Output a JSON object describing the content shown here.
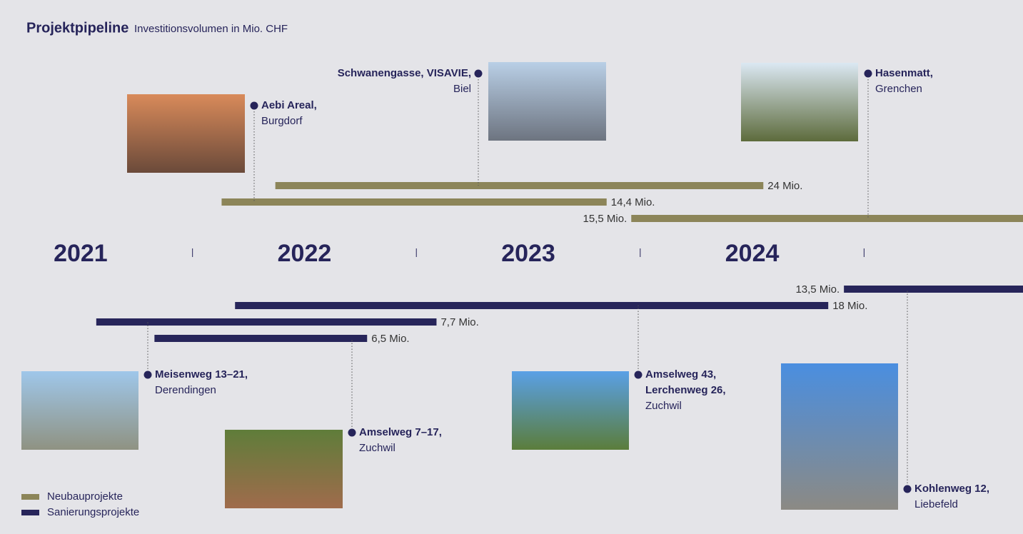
{
  "chart_data": {
    "type": "gantt",
    "title": "Projektpipeline",
    "subtitle": "Investitionsvolumen in Mio. CHF",
    "categories": [
      "2021",
      "2022",
      "2023",
      "2024"
    ],
    "xlim": [
      2021.14,
      2025.71
    ],
    "xticks": [
      2022,
      2023,
      2024,
      2025
    ],
    "series": [
      {
        "name": "Neubauprojekte",
        "color": "#8c8559",
        "tasks": [
          {
            "name": [
              "Aebi Areal,"
            ],
            "place": "Burgdorf",
            "start": 2022.13,
            "end": 2023.85,
            "label": "14,4 Mio."
          },
          {
            "name": [
              "Schwanengasse, VISAVIE,"
            ],
            "place": "Biel",
            "start": 2022.37,
            "end": 2024.55,
            "label": "24 Mio."
          },
          {
            "name": [
              "Hasenmatt,"
            ],
            "place": "Grenchen",
            "start": 2023.96,
            "end": 2025.71,
            "label": "15,5 Mio."
          }
        ]
      },
      {
        "name": "Sanierungsprojekte",
        "color": "#27255a",
        "tasks": [
          {
            "name": [
              "Meisenweg 13–21,"
            ],
            "place": "Derendingen",
            "start": 2021.57,
            "end": 2023.09,
            "label": "7,7 Mio."
          },
          {
            "name": [
              "Amselweg 7–17,"
            ],
            "place": "Zuchwil",
            "start": 2021.83,
            "end": 2022.78,
            "label": "6,5 Mio."
          },
          {
            "name": [
              "Amselweg 43,",
              "Lerchenweg 26,"
            ],
            "place": "Zuchwil",
            "start": 2022.19,
            "end": 2024.84,
            "label": "18 Mio."
          },
          {
            "name": [
              "Kohlenweg 12,"
            ],
            "place": "Liebefeld",
            "start": 2024.91,
            "end": 2025.71,
            "label": "13,5 Mio."
          }
        ]
      }
    ]
  }
}
